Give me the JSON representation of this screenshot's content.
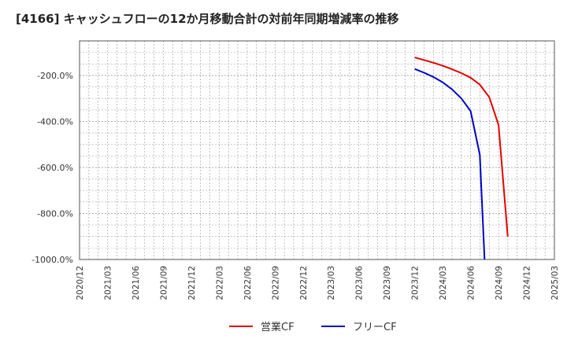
{
  "chart_data": {
    "type": "line",
    "title": "[4166]  キャッシュフローの12か月移動合計の対前年同期増減率の推移",
    "xlabel": "",
    "ylabel": "",
    "ylim": [
      -1000,
      -50
    ],
    "yticks": [
      -200,
      -400,
      -600,
      -800,
      -1000
    ],
    "ytick_labels": [
      "-200.0%",
      "-400.0%",
      "-600.0%",
      "-800.0%",
      "-1000.0%"
    ],
    "x_categories": [
      "2020/12",
      "2021/03",
      "2021/06",
      "2021/09",
      "2021/12",
      "2022/03",
      "2022/06",
      "2022/09",
      "2022/12",
      "2023/03",
      "2023/06",
      "2023/09",
      "2023/12",
      "2024/03",
      "2024/06",
      "2024/09",
      "2024/12",
      "2025/03"
    ],
    "grid": true,
    "legend_position": "bottom-center",
    "series": [
      {
        "name": "営業CF",
        "color": "#e60000",
        "points": [
          {
            "x": 12.0,
            "y": -122
          },
          {
            "x": 12.33,
            "y": -133
          },
          {
            "x": 12.67,
            "y": -145
          },
          {
            "x": 13.0,
            "y": -158
          },
          {
            "x": 13.33,
            "y": -173
          },
          {
            "x": 13.67,
            "y": -190
          },
          {
            "x": 14.0,
            "y": -210
          },
          {
            "x": 14.33,
            "y": -240
          },
          {
            "x": 14.67,
            "y": -295
          },
          {
            "x": 15.0,
            "y": -415
          },
          {
            "x": 15.33,
            "y": -900
          }
        ]
      },
      {
        "name": "フリーCF",
        "color": "#0000cc",
        "points": [
          {
            "x": 12.0,
            "y": -172
          },
          {
            "x": 12.33,
            "y": -188
          },
          {
            "x": 12.67,
            "y": -207
          },
          {
            "x": 13.0,
            "y": -230
          },
          {
            "x": 13.33,
            "y": -260
          },
          {
            "x": 13.67,
            "y": -300
          },
          {
            "x": 14.0,
            "y": -355
          },
          {
            "x": 14.33,
            "y": -545
          },
          {
            "x": 14.5,
            "y": -1000
          }
        ]
      }
    ]
  }
}
